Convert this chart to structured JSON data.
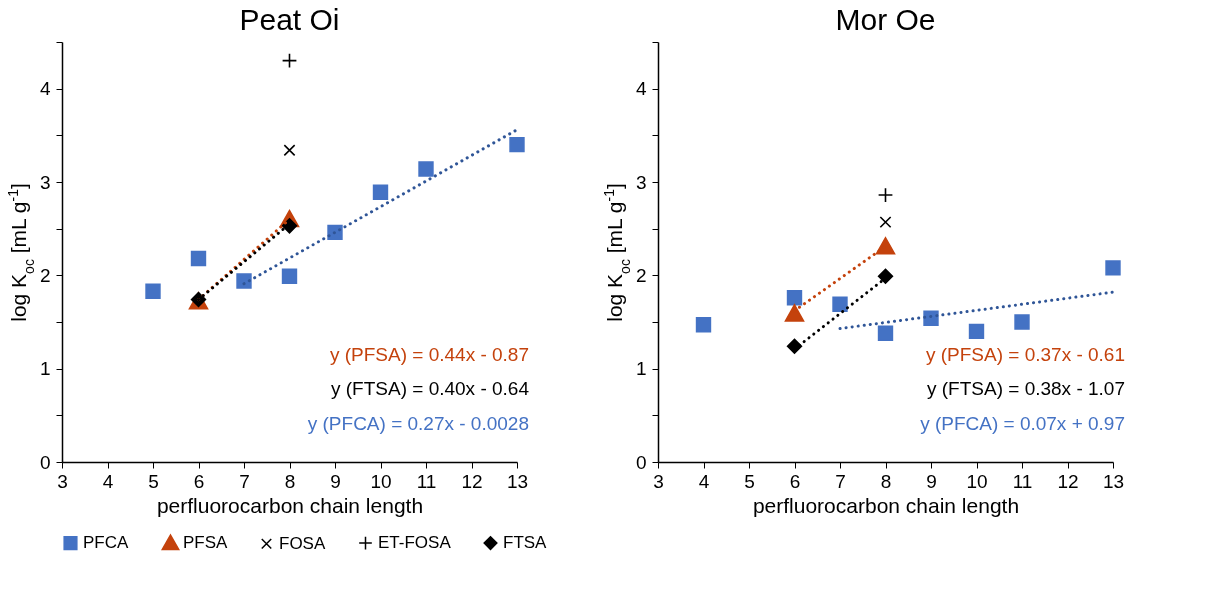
{
  "chart_data": [
    {
      "type": "scatter",
      "title": "Peat Oi",
      "xlabel": "perfluorocarbon chain length",
      "ylabel": "log K$_{oc}$ [mL g$^{-1}$]",
      "xlim": [
        3,
        13
      ],
      "xticks": [
        3,
        4,
        5,
        6,
        7,
        8,
        9,
        10,
        11,
        12,
        13
      ],
      "ylim": [
        0,
        4.5
      ],
      "yticks": [
        0,
        {
          "value": 0.5,
          "label": null
        },
        1,
        {
          "value": 1.5,
          "label": null
        },
        2,
        {
          "value": 2.5,
          "label": null
        },
        3,
        {
          "value": 3.5,
          "label": null
        },
        4,
        {
          "value": 4.5,
          "label": null
        }
      ],
      "legend": "bottom",
      "series": [
        {
          "name": "PFCA",
          "color": "#4472c4",
          "marker": "square",
          "x": [
            5,
            6,
            7,
            8,
            9,
            10,
            11,
            13
          ],
          "values": [
            1.83,
            2.18,
            1.94,
            1.99,
            2.46,
            2.89,
            3.14,
            3.4
          ]
        },
        {
          "name": "PFSA",
          "color": "#c4420c",
          "marker": "triangle",
          "x": [
            6,
            8
          ],
          "values": [
            1.72,
            2.6
          ]
        },
        {
          "name": "FOSA",
          "color": "#000000",
          "marker": "x",
          "x": [
            8
          ],
          "values": [
            3.34
          ]
        },
        {
          "name": "ET-FOSA",
          "color": "#000000",
          "marker": "cross",
          "x": [
            8
          ],
          "values": [
            4.3
          ]
        },
        {
          "name": "FTSA",
          "color": "#000000",
          "marker": "diamond",
          "x": [
            6,
            8
          ],
          "values": [
            1.74,
            2.53
          ]
        },
        {
          "type": "line",
          "color": "#2f5597",
          "line_style": "dotted",
          "x": [
            7,
            13
          ],
          "values": [
            1.91,
            3.56
          ]
        },
        {
          "type": "line",
          "color": "#c4420c",
          "line_style": "dotted",
          "x": [
            6,
            8
          ],
          "values": [
            1.74,
            2.6
          ]
        },
        {
          "type": "line",
          "color": "#000000",
          "line_style": "dotted",
          "x": [
            6,
            8
          ],
          "values": [
            1.74,
            2.55
          ]
        }
      ],
      "annotations": [
        "y (PFSA) = 0.44x - 0.87",
        "y (FTSA) = 0.40x - 0.64",
        "y (PFCA) = 0.27x - 0.0028"
      ]
    },
    {
      "type": "scatter",
      "title": "Mor Oe",
      "xlabel": "perfluorocarbon chain length",
      "ylabel": "log K$_{oc}$ [mL g$^{-1}$]",
      "xlim": [
        3,
        13
      ],
      "xticks": [
        3,
        4,
        5,
        6,
        7,
        8,
        9,
        10,
        11,
        12,
        13
      ],
      "ylim": [
        0,
        4.5
      ],
      "yticks": [
        0,
        {
          "value": 0.5,
          "label": null
        },
        1,
        {
          "value": 1.5,
          "label": null
        },
        2,
        {
          "value": 2.5,
          "label": null
        },
        3,
        {
          "value": 3.5,
          "label": null
        },
        4,
        {
          "value": 4.5,
          "label": null
        }
      ],
      "legend": "bottom",
      "series": [
        {
          "name": "PFCA",
          "color": "#4472c4",
          "marker": "square",
          "x": [
            4,
            6,
            7,
            8,
            9,
            10,
            11,
            13
          ],
          "values": [
            1.47,
            1.76,
            1.69,
            1.38,
            1.54,
            1.4,
            1.5,
            2.08
          ]
        },
        {
          "name": "PFSA",
          "color": "#c4420c",
          "marker": "triangle",
          "x": [
            6,
            8
          ],
          "values": [
            1.59,
            2.31
          ]
        },
        {
          "name": "FOSA",
          "color": "#000000",
          "marker": "x",
          "x": [
            8
          ],
          "values": [
            2.57
          ]
        },
        {
          "name": "ET-FOSA",
          "color": "#000000",
          "marker": "cross",
          "x": [
            8
          ],
          "values": [
            2.86
          ]
        },
        {
          "name": "FTSA",
          "color": "#000000",
          "marker": "diamond",
          "x": [
            6,
            8
          ],
          "values": [
            1.24,
            1.99
          ]
        },
        {
          "type": "line",
          "color": "#2f5597",
          "line_style": "dotted",
          "x": [
            7,
            13
          ],
          "values": [
            1.43,
            1.82
          ]
        },
        {
          "type": "line",
          "color": "#c4420c",
          "line_style": "dotted",
          "x": [
            6,
            8
          ],
          "values": [
            1.62,
            2.31
          ]
        },
        {
          "type": "line",
          "color": "#000000",
          "line_style": "dotted",
          "x": [
            6,
            8
          ],
          "values": [
            1.21,
            1.97
          ]
        }
      ],
      "annotations": [
        "y (PFSA) = 0.37x - 0.61",
        "y (FTSA) = 0.38x - 1.07",
        "y (PFCA) = 0.07x + 0.97"
      ]
    }
  ]
}
